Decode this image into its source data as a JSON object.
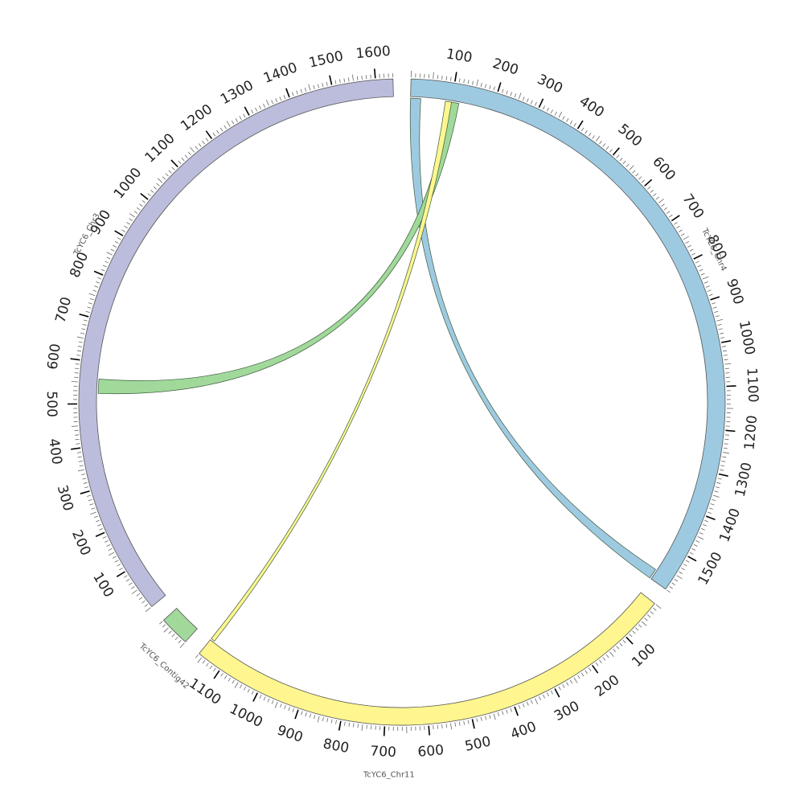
{
  "chart_data": {
    "type": "circos",
    "segments": [
      {
        "name": "TcYC6_Chr4",
        "length": 1590,
        "color": "#9ecae1",
        "tick_labels": [
          "100",
          "200",
          "300",
          "400",
          "500",
          "600",
          "700",
          "800",
          "900",
          "1000",
          "1100",
          "1200",
          "1300",
          "1400",
          "1500"
        ]
      },
      {
        "name": "TcYC6_Chr11",
        "length": 1160,
        "color": "#fff68f",
        "tick_labels": [
          "100",
          "200",
          "300",
          "400",
          "500",
          "600",
          "700",
          "800",
          "900",
          "1000",
          "1100"
        ]
      },
      {
        "name": "TcYC6_Contig42",
        "length": 70,
        "color": "#a1d99b",
        "tick_labels": []
      },
      {
        "name": "TcYC6_Chr3",
        "length": 1640,
        "color": "#bcbddc",
        "tick_labels": [
          "100",
          "200",
          "300",
          "400",
          "500",
          "600",
          "700",
          "800",
          "900",
          "1000",
          "1100",
          "1200",
          "1300",
          "1400",
          "1500",
          "1600"
        ]
      }
    ],
    "links": [
      {
        "from": {
          "segment": "TcYC6_Chr4",
          "start": 0,
          "end": 25
        },
        "to": {
          "segment": "TcYC6_Chr4",
          "start": 1565,
          "end": 1590
        },
        "color": "#9ecae1"
      },
      {
        "from": {
          "segment": "TcYC6_Chr4",
          "start": 95,
          "end": 118
        },
        "to": {
          "segment": "TcYC6_Chr3",
          "start": 525,
          "end": 560
        },
        "color": "#a1d99b"
      },
      {
        "from": {
          "segment": "TcYC6_Chr4",
          "start": 85,
          "end": 100
        },
        "to": {
          "segment": "TcYC6_Chr11",
          "start": 1150,
          "end": 1160
        },
        "color": "#fff68f"
      }
    ]
  }
}
